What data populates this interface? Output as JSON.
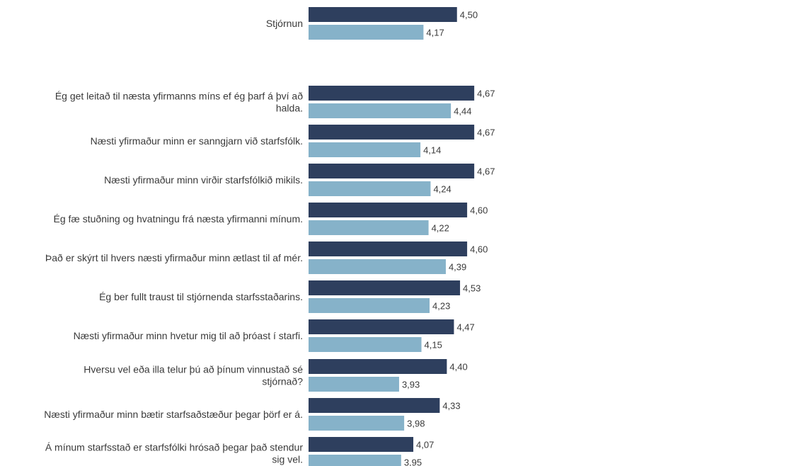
{
  "chart_data": {
    "type": "bar",
    "orientation": "horizontal",
    "title": "",
    "xlabel": "",
    "ylabel": "",
    "xlim": [
      0,
      5
    ],
    "grid": false,
    "legend": "none",
    "colors": [
      "#2e3f5e",
      "#86b2c9"
    ],
    "categories": [
      [
        "Stjórnun"
      ],
      [
        "Ég get leitað til næsta yfirmanns míns ef ég þarf á því að",
        "halda."
      ],
      [
        "Næsti yfirmaður minn er sanngjarn við starfsfólk."
      ],
      [
        "Næsti yfirmaður minn virðir starfsfólkið mikils."
      ],
      [
        "Ég fæ stuðning og hvatningu frá næsta yfirmanni mínum."
      ],
      [
        "Það er skýrt til hvers næsti yfirmaður minn ætlast til af mér."
      ],
      [
        "Ég ber fullt traust til stjórnenda starfsstaðarins."
      ],
      [
        "Næsti yfirmaður minn hvetur mig til að þróast í starfi."
      ],
      [
        "Hversu vel eða illa telur þú að þínum vinnustað sé",
        "stjórnað?"
      ],
      [
        "Næsti yfirmaður minn bætir starfsaðstæður þegar þörf er á."
      ],
      [
        "Á mínum starfsstað er starfsfólki hrósað þegar það stendur",
        "sig vel."
      ]
    ],
    "series": [
      {
        "values": [
          4.5,
          4.67,
          4.67,
          4.67,
          4.6,
          4.6,
          4.53,
          4.47,
          4.4,
          4.33,
          4.07
        ],
        "labels": [
          "4,50",
          "4,67",
          "4,67",
          "4,67",
          "4,60",
          "4,60",
          "4,53",
          "4,47",
          "4,40",
          "4,33",
          "4,07"
        ]
      },
      {
        "values": [
          4.17,
          4.44,
          4.14,
          4.24,
          4.22,
          4.39,
          4.23,
          4.15,
          3.93,
          3.98,
          3.95
        ],
        "labels": [
          "4,17",
          "4,44",
          "4,14",
          "4,24",
          "4,22",
          "4,39",
          "4,23",
          "4,15",
          "3,93",
          "3,98",
          "3,95"
        ]
      }
    ]
  }
}
